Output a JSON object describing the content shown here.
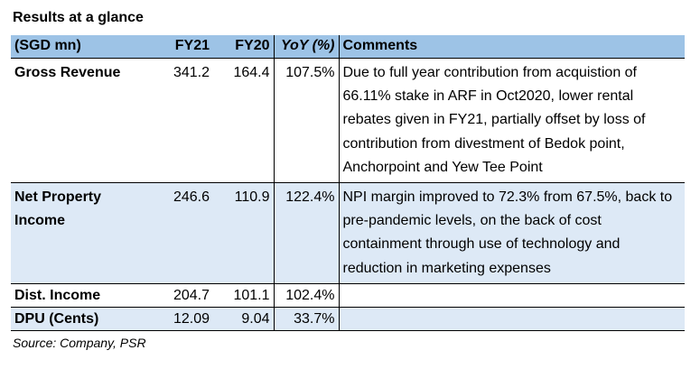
{
  "title": "Results at a glance",
  "table": {
    "headers": [
      "(SGD mn)",
      "FY21",
      "FY20",
      "YoY (%)",
      "Comments"
    ],
    "rows": [
      {
        "label": "Gross Revenue",
        "fy21": "341.2",
        "fy20": "164.4",
        "yoy": "107.5%",
        "comment": "Due to full year contribution from acquistion of 66.11% stake in ARF in Oct2020, lower rental rebates given in FY21, partially offset by loss of contribution from divestment of Bedok point, Anchorpoint and Yew Tee Point"
      },
      {
        "label": "Net Property Income",
        "fy21": "246.6",
        "fy20": "110.9",
        "yoy": "122.4%",
        "comment": "NPI margin improved to 72.3% from 67.5%, back to pre-pandemic levels, on the back of cost containment through use of technology and reduction in marketing expenses"
      },
      {
        "label": "Dist. Income",
        "fy21": "204.7",
        "fy20": "101.1",
        "yoy": "102.4%",
        "comment": ""
      },
      {
        "label": "DPU (Cents)",
        "fy21": "12.09",
        "fy20": "9.04",
        "yoy": "33.7%",
        "comment": ""
      }
    ]
  },
  "source": "Source: Company, PSR"
}
